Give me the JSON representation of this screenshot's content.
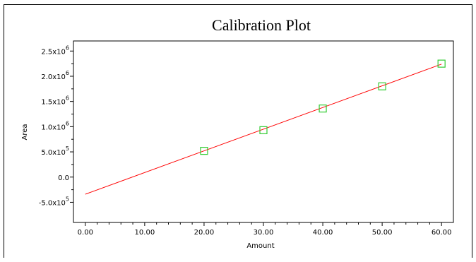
{
  "chart_data": {
    "type": "scatter",
    "title": "Calibration Plot",
    "xlabel": "Amount",
    "ylabel": "Area",
    "xlim": [
      -2,
      62
    ],
    "ylim": [
      -900000,
      2700000
    ],
    "x_ticks": [
      0,
      10,
      20,
      30,
      40,
      50,
      60
    ],
    "x_tick_labels": [
      "0.00",
      "10.00",
      "20.00",
      "30.00",
      "40.00",
      "50.00",
      "60.00"
    ],
    "y_ticks": [
      -500000,
      0,
      500000,
      1000000,
      1500000,
      2000000,
      2500000
    ],
    "y_tick_labels": [
      {
        "mantissa": "-5.0x10",
        "exp": "5"
      },
      {
        "mantissa": "0.0",
        "exp": ""
      },
      {
        "mantissa": "5.0x10",
        "exp": "5"
      },
      {
        "mantissa": "1.0x10",
        "exp": "6"
      },
      {
        "mantissa": "1.5x10",
        "exp": "6"
      },
      {
        "mantissa": "2.0x10",
        "exp": "6"
      },
      {
        "mantissa": "2.5x10",
        "exp": "6"
      }
    ],
    "series": [
      {
        "kind": "points",
        "marker": "square",
        "color": "#33cc33",
        "x": [
          20,
          30,
          40,
          50,
          60
        ],
        "y": [
          520000,
          930000,
          1360000,
          1800000,
          2250000
        ]
      },
      {
        "kind": "fit-line",
        "color": "#ff0000",
        "x": [
          0,
          60
        ],
        "y": [
          -340000,
          2240000
        ]
      }
    ],
    "grid": false,
    "legend": "none"
  }
}
